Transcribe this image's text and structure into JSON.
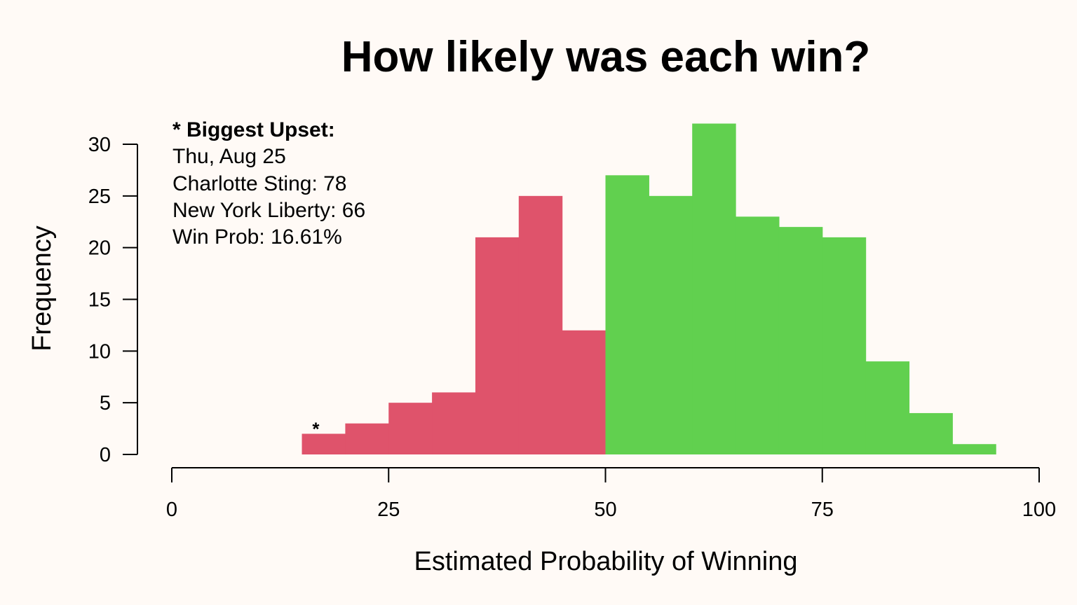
{
  "chart_data": {
    "type": "bar",
    "title": "How likely was each win?",
    "xlabel": "Estimated Probability of Winning",
    "ylabel": "Frequency",
    "xlim": [
      0,
      100
    ],
    "ylim": [
      0,
      30
    ],
    "x_ticks": [
      0,
      25,
      50,
      75,
      100
    ],
    "y_ticks": [
      0,
      5,
      10,
      15,
      20,
      25,
      30
    ],
    "grid": false,
    "colors": {
      "below_50": "#df536b",
      "above_50": "#61d04f"
    },
    "bins": [
      {
        "start": 15,
        "end": 20,
        "count": 2
      },
      {
        "start": 20,
        "end": 25,
        "count": 3
      },
      {
        "start": 25,
        "end": 30,
        "count": 5
      },
      {
        "start": 30,
        "end": 35,
        "count": 6
      },
      {
        "start": 35,
        "end": 40,
        "count": 21
      },
      {
        "start": 40,
        "end": 45,
        "count": 25
      },
      {
        "start": 45,
        "end": 50,
        "count": 12
      },
      {
        "start": 50,
        "end": 55,
        "count": 27
      },
      {
        "start": 55,
        "end": 60,
        "count": 25
      },
      {
        "start": 60,
        "end": 65,
        "count": 32
      },
      {
        "start": 65,
        "end": 70,
        "count": 23
      },
      {
        "start": 70,
        "end": 75,
        "count": 22
      },
      {
        "start": 75,
        "end": 80,
        "count": 21
      },
      {
        "start": 80,
        "end": 85,
        "count": 9
      },
      {
        "start": 85,
        "end": 90,
        "count": 4
      },
      {
        "start": 90,
        "end": 95,
        "count": 1
      }
    ],
    "annotation": {
      "heading": "* Biggest Upset:",
      "lines": [
        "Thu, Aug 25",
        "Charlotte Sting: 78",
        "New York Liberty: 66",
        "Win Prob: 16.61%"
      ],
      "marker": {
        "symbol": "*",
        "x": 16.61,
        "y": 2
      }
    }
  }
}
